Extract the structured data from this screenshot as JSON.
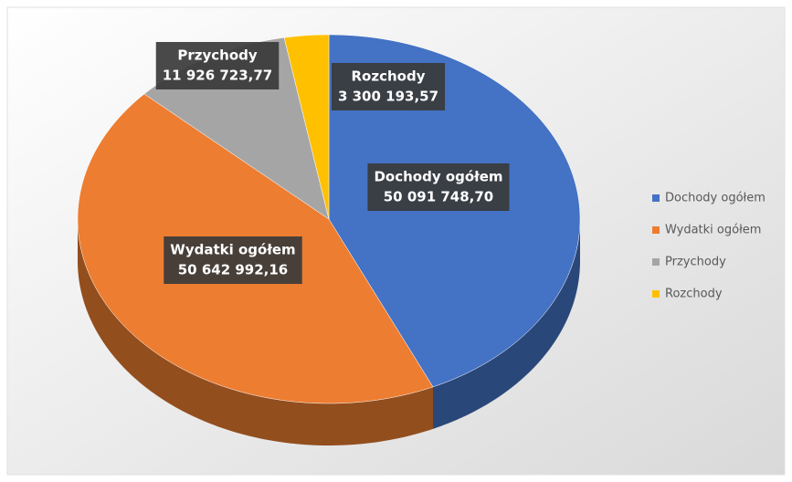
{
  "chart_data": {
    "type": "pie",
    "categories": [
      "Dochody ogółem",
      "Wydatki ogółem",
      "Przychody",
      "Rozchody"
    ],
    "values": [
      50091748.7,
      50642992.16,
      11926723.77,
      3300193.57
    ],
    "value_labels": [
      "50 091 748,70",
      "50 642 992,16",
      "11 926 723,77",
      "3 300 193,57"
    ],
    "colors": [
      "#4472c4",
      "#ed7d31",
      "#a5a5a5",
      "#ffc000"
    ],
    "legend": "right"
  }
}
